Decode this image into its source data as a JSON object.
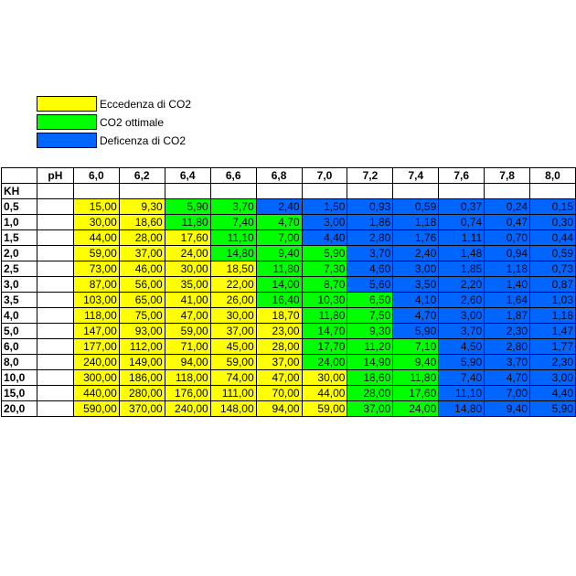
{
  "colors": {
    "excess": "#ffff00",
    "optimal": "#00ff00",
    "deficit": "#0066ff"
  },
  "legend": [
    {
      "label": "Eccedenza di CO2",
      "status": "excess"
    },
    {
      "label": "CO2 ottimale",
      "status": "optimal"
    },
    {
      "label": "Deficenza di CO2",
      "status": "deficit"
    }
  ],
  "chart_data": {
    "type": "table",
    "row_header": "KH",
    "col_header": "pH",
    "columns": [
      "6,0",
      "6,2",
      "6,4",
      "6,6",
      "6,8",
      "7,0",
      "7,2",
      "7,4",
      "7,6",
      "7,8",
      "8,0"
    ],
    "rows": [
      {
        "kh": "0,5",
        "values": [
          "15,00",
          "9,30",
          "5,90",
          "3,70",
          "2,40",
          "1,50",
          "0,93",
          "0,59",
          "0,37",
          "0,24",
          "0,15"
        ],
        "status": [
          "excess",
          "excess",
          "optimal",
          "optimal",
          "deficit",
          "deficit",
          "deficit",
          "deficit",
          "deficit",
          "deficit",
          "deficit"
        ]
      },
      {
        "kh": "1,0",
        "values": [
          "30,00",
          "18,60",
          "11,80",
          "7,40",
          "4,70",
          "3,00",
          "1,86",
          "1,18",
          "0,74",
          "0,47",
          "0,30"
        ],
        "status": [
          "excess",
          "excess",
          "optimal",
          "optimal",
          "optimal",
          "deficit",
          "deficit",
          "deficit",
          "deficit",
          "deficit",
          "deficit"
        ]
      },
      {
        "kh": "1,5",
        "values": [
          "44,00",
          "28,00",
          "17,60",
          "11,10",
          "7,00",
          "4,40",
          "2,80",
          "1,76",
          "1,11",
          "0,70",
          "0,44"
        ],
        "status": [
          "excess",
          "excess",
          "excess",
          "optimal",
          "optimal",
          "deficit",
          "deficit",
          "deficit",
          "deficit",
          "deficit",
          "deficit"
        ]
      },
      {
        "kh": "2,0",
        "values": [
          "59,00",
          "37,00",
          "24,00",
          "14,80",
          "9,40",
          "5,90",
          "3,70",
          "2,40",
          "1,48",
          "0,94",
          "0,59"
        ],
        "status": [
          "excess",
          "excess",
          "excess",
          "optimal",
          "optimal",
          "optimal",
          "deficit",
          "deficit",
          "deficit",
          "deficit",
          "deficit"
        ]
      },
      {
        "kh": "2,5",
        "values": [
          "73,00",
          "46,00",
          "30,00",
          "18,50",
          "11,80",
          "7,30",
          "4,60",
          "3,00",
          "1,85",
          "1,18",
          "0,73"
        ],
        "status": [
          "excess",
          "excess",
          "excess",
          "excess",
          "optimal",
          "optimal",
          "deficit",
          "deficit",
          "deficit",
          "deficit",
          "deficit"
        ]
      },
      {
        "kh": "3,0",
        "values": [
          "87,00",
          "56,00",
          "35,00",
          "22,00",
          "14,00",
          "8,70",
          "5,60",
          "3,50",
          "2,20",
          "1,40",
          "0,87"
        ],
        "status": [
          "excess",
          "excess",
          "excess",
          "excess",
          "optimal",
          "optimal",
          "deficit",
          "deficit",
          "deficit",
          "deficit",
          "deficit"
        ]
      },
      {
        "kh": "3,5",
        "values": [
          "103,00",
          "65,00",
          "41,00",
          "26,00",
          "16,40",
          "10,30",
          "6,50",
          "4,10",
          "2,60",
          "1,64",
          "1,03"
        ],
        "status": [
          "excess",
          "excess",
          "excess",
          "excess",
          "optimal",
          "optimal",
          "optimal",
          "deficit",
          "deficit",
          "deficit",
          "deficit"
        ]
      },
      {
        "kh": "4,0",
        "values": [
          "118,00",
          "75,00",
          "47,00",
          "30,00",
          "18,70",
          "11,80",
          "7,50",
          "4,70",
          "3,00",
          "1,87",
          "1,18"
        ],
        "status": [
          "excess",
          "excess",
          "excess",
          "excess",
          "excess",
          "optimal",
          "optimal",
          "deficit",
          "deficit",
          "deficit",
          "deficit"
        ]
      },
      {
        "kh": "5,0",
        "values": [
          "147,00",
          "93,00",
          "59,00",
          "37,00",
          "23,00",
          "14,70",
          "9,30",
          "5,90",
          "3,70",
          "2,30",
          "1,47"
        ],
        "status": [
          "excess",
          "excess",
          "excess",
          "excess",
          "excess",
          "optimal",
          "optimal",
          "deficit",
          "deficit",
          "deficit",
          "deficit"
        ]
      },
      {
        "kh": "6,0",
        "values": [
          "177,00",
          "112,00",
          "71,00",
          "45,00",
          "28,00",
          "17,70",
          "11,20",
          "7,10",
          "4,50",
          "2,80",
          "1,77"
        ],
        "status": [
          "excess",
          "excess",
          "excess",
          "excess",
          "excess",
          "optimal",
          "optimal",
          "optimal",
          "deficit",
          "deficit",
          "deficit"
        ]
      },
      {
        "kh": "8,0",
        "values": [
          "240,00",
          "149,00",
          "94,00",
          "59,00",
          "37,00",
          "24,00",
          "14,90",
          "9,40",
          "5,90",
          "3,70",
          "2,30"
        ],
        "status": [
          "excess",
          "excess",
          "excess",
          "excess",
          "excess",
          "optimal",
          "optimal",
          "optimal",
          "deficit",
          "deficit",
          "deficit"
        ]
      },
      {
        "kh": "10,0",
        "values": [
          "300,00",
          "186,00",
          "118,00",
          "74,00",
          "47,00",
          "30,00",
          "18,60",
          "11,80",
          "7,40",
          "4,70",
          "3,00"
        ],
        "status": [
          "excess",
          "excess",
          "excess",
          "excess",
          "excess",
          "excess",
          "optimal",
          "optimal",
          "deficit",
          "deficit",
          "deficit"
        ]
      },
      {
        "kh": "15,0",
        "values": [
          "440,00",
          "280,00",
          "176,00",
          "111,00",
          "70,00",
          "44,00",
          "28,00",
          "17,60",
          "11,10",
          "7,00",
          "4,40"
        ],
        "status": [
          "excess",
          "excess",
          "excess",
          "excess",
          "excess",
          "excess",
          "optimal",
          "optimal",
          "deficit",
          "deficit",
          "deficit"
        ]
      },
      {
        "kh": "20,0",
        "values": [
          "590,00",
          "370,00",
          "240,00",
          "148,00",
          "94,00",
          "59,00",
          "37,00",
          "24,00",
          "14,80",
          "9,40",
          "5,90"
        ],
        "status": [
          "excess",
          "excess",
          "excess",
          "excess",
          "excess",
          "excess",
          "optimal",
          "optimal",
          "deficit",
          "deficit",
          "deficit"
        ]
      }
    ]
  }
}
